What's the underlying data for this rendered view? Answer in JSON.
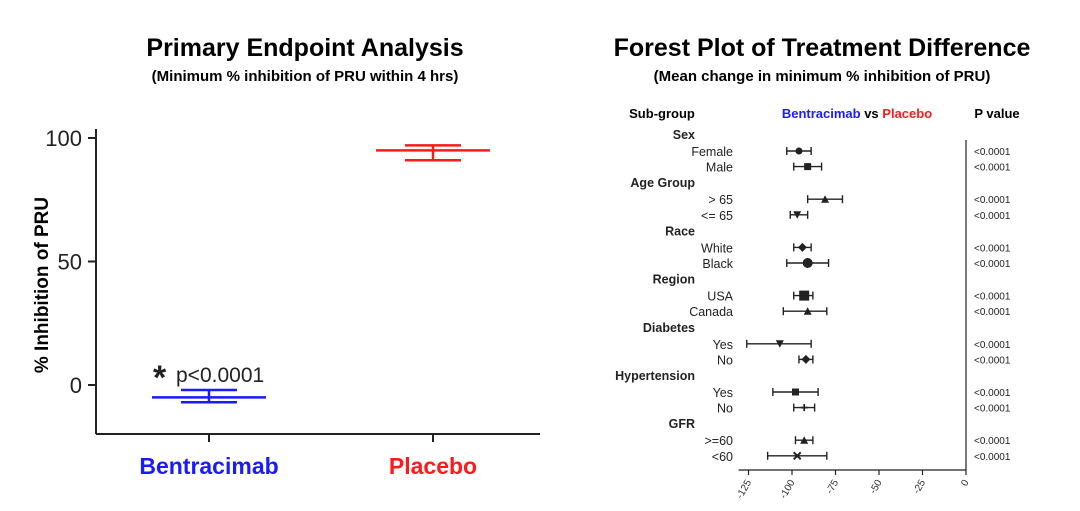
{
  "colors": {
    "bentracimab": "#1a1aff",
    "placebo": "#ff1a1a",
    "ink": "#222222"
  },
  "chart_data": [
    {
      "type": "scatter",
      "title": "Primary Endpoint Analysis",
      "subtitle": "(Minimum % inhibition of PRU within 4 hrs)",
      "ylabel": "% Inhibition of PRU",
      "ylim": [
        -20,
        100
      ],
      "yticks": [
        "0",
        "50",
        "100"
      ],
      "categories": [
        "Bentracimab",
        "Placebo"
      ],
      "series": [
        {
          "name": "Bentracimab",
          "mean": -5,
          "lower": -7,
          "upper": -2,
          "color": "#1a1aff"
        },
        {
          "name": "Placebo",
          "mean": 95,
          "lower": 91,
          "upper": 97,
          "color": "#ff1a1a"
        }
      ],
      "annotation_star": "*",
      "annotation": "p<0.0001"
    },
    {
      "type": "forest",
      "title": "Forest Plot of Treatment Difference",
      "subtitle": "(Mean change in minimum % inhibition of PRU)",
      "header_subgroup": "Sub-group",
      "header_left": "Bentracimab",
      "header_vs": " vs ",
      "header_right": "Placebo",
      "header_p": "P value",
      "xlim": [
        -125,
        0
      ],
      "xticks": [
        -125,
        -100,
        -75,
        -50,
        -25,
        0
      ],
      "groups": [
        {
          "label": "Sex",
          "rows": [
            {
              "label": "Female",
              "mean": -96,
              "lower": -103,
              "upper": -89,
              "marker": "circle",
              "p": "<0.0001"
            },
            {
              "label": "Male",
              "mean": -91,
              "lower": -99,
              "upper": -83,
              "marker": "square",
              "p": "<0.0001"
            }
          ]
        },
        {
          "label": "Age Group",
          "rows": [
            {
              "label": "> 65",
              "mean": -81,
              "lower": -91,
              "upper": -71,
              "marker": "triangle",
              "p": "<0.0001"
            },
            {
              "label": "<= 65",
              "mean": -97,
              "lower": -101,
              "upper": -91,
              "marker": "triangle-down",
              "p": "<0.0001"
            }
          ]
        },
        {
          "label": "Race",
          "rows": [
            {
              "label": "White",
              "mean": -94,
              "lower": -99,
              "upper": -89,
              "marker": "diamond",
              "p": "<0.0001"
            },
            {
              "label": "Black",
              "mean": -91,
              "lower": -103,
              "upper": -79,
              "marker": "circle-large",
              "p": "<0.0001"
            }
          ]
        },
        {
          "label": "Region",
          "rows": [
            {
              "label": "USA",
              "mean": -93,
              "lower": -99,
              "upper": -88,
              "marker": "square-large",
              "p": "<0.0001"
            },
            {
              "label": "Canada",
              "mean": -91,
              "lower": -105,
              "upper": -80,
              "marker": "triangle",
              "p": "<0.0001"
            }
          ]
        },
        {
          "label": "Diabetes",
          "rows": [
            {
              "label": "Yes",
              "mean": -107,
              "lower": -126,
              "upper": -89,
              "marker": "triangle-down",
              "p": "<0.0001"
            },
            {
              "label": "No",
              "mean": -92,
              "lower": -96,
              "upper": -88,
              "marker": "diamond",
              "p": "<0.0001"
            }
          ]
        },
        {
          "label": "Hypertension",
          "rows": [
            {
              "label": "Yes",
              "mean": -98,
              "lower": -111,
              "upper": -85,
              "marker": "square",
              "p": "<0.0001"
            },
            {
              "label": "No",
              "mean": -93,
              "lower": -99,
              "upper": -87,
              "marker": "cross",
              "p": "<0.0001"
            }
          ]
        },
        {
          "label": "GFR",
          "rows": [
            {
              "label": ">=60",
              "mean": -93,
              "lower": -98,
              "upper": -88,
              "marker": "triangle",
              "p": "<0.0001"
            },
            {
              "label": "<60",
              "mean": -97,
              "lower": -114,
              "upper": -80,
              "marker": "x",
              "p": "<0.0001"
            }
          ]
        }
      ]
    }
  ]
}
